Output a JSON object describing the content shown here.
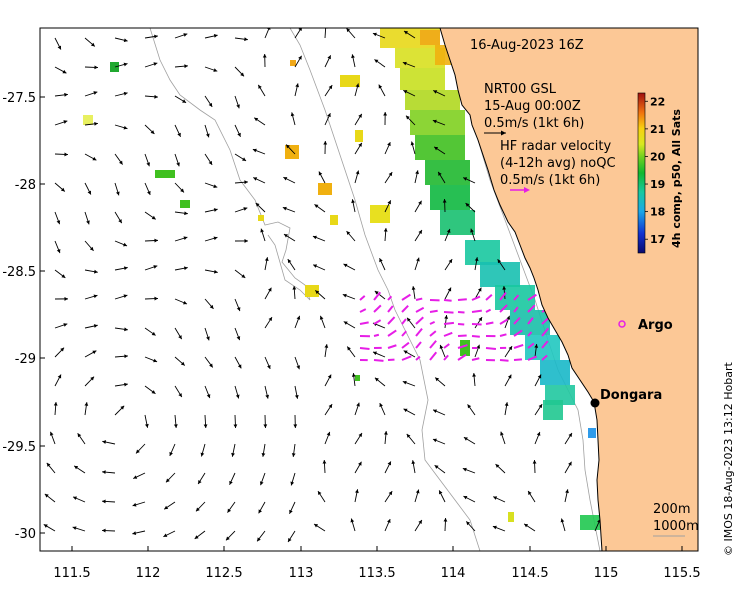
{
  "map": {
    "date_label": "16-Aug-2023 16Z",
    "gsl_block": [
      "NRT00 GSL",
      "15-Aug 00:00Z",
      "0.5m/s (1kt 6h)"
    ],
    "hf_block": [
      "HF radar velocity",
      "(4-12h avg) noQC",
      "0.5m/s (1kt 6h)"
    ],
    "credit": "© IMOS 18-Aug-2023 13:12 Hobart",
    "places": {
      "argo": "Argo",
      "dongara": "Dongara"
    },
    "depth_legend": [
      "200m",
      "1000m"
    ],
    "x_ticks": [
      "111.5",
      "112",
      "112.5",
      "113",
      "113.5",
      "114",
      "114.5",
      "115",
      "115.5"
    ],
    "y_ticks": [
      "-27.5",
      "-28",
      "-28.5",
      "-29",
      "-29.5",
      "-30"
    ],
    "colorbar": {
      "title": "4h comp, p50, All Sats",
      "ticks": [
        "22",
        "21",
        "20",
        "19",
        "18",
        "17"
      ],
      "min": 16.5,
      "max": 22.3
    },
    "colors": {
      "land": "#fcc896",
      "hf_vectors": "#e61ee6",
      "bathymetry": "#a0a0a0"
    }
  }
}
